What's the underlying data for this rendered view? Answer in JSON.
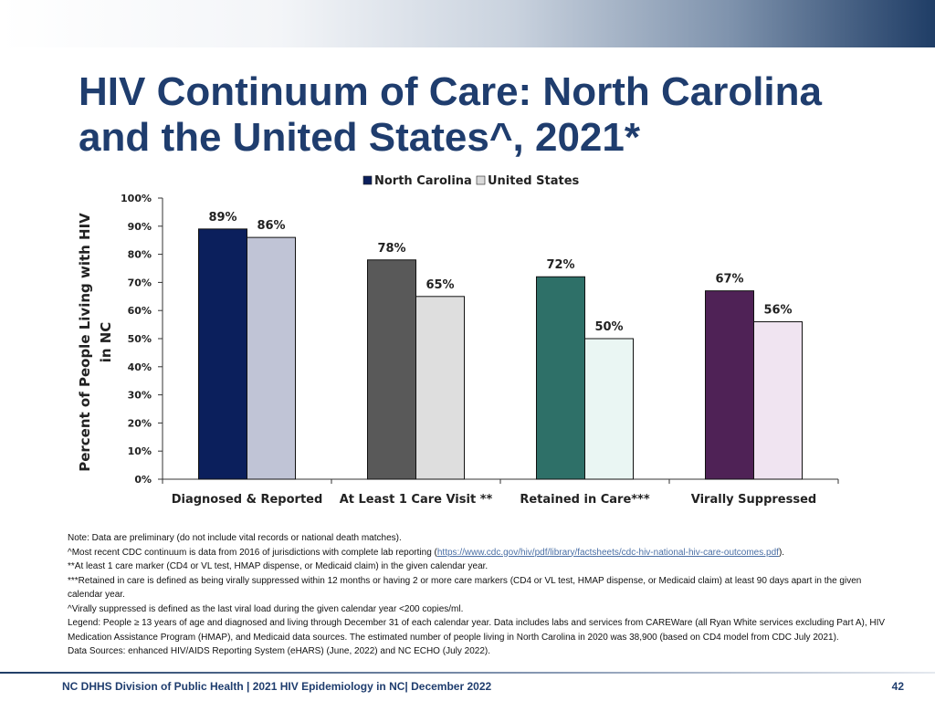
{
  "slide": {
    "title_line1": "HIV Continuum of Care: North Carolina",
    "title_line2": "and the United States^, 2021*",
    "footer": "NC DHHS Division of Public Health | 2021 HIV Epidemiology in NC| December 2022",
    "page_number": "42"
  },
  "notes": {
    "line1": "Note: Data are preliminary (do not include vital records or national death matches).",
    "line2_prefix": "^Most recent CDC continuum is data from 2016 of jurisdictions with complete lab reporting (",
    "line2_link": "https://www.cdc.gov/hiv/pdf/library/factsheets/cdc-hiv-national-hiv-care-outcomes.pdf",
    "line2_suffix": ").",
    "line3": "**At least 1 care marker (CD4 or VL test, HMAP dispense, or Medicaid claim) in the given calendar year.",
    "line4": "***Retained in care is defined as being virally suppressed within 12 months or having 2 or more care markers (CD4 or VL test, HMAP dispense, or Medicaid claim) at least 90 days apart in the given calendar year.",
    "line5": "^Virally suppressed is defined as the last viral load during the given calendar year <200 copies/ml.",
    "line6": "Legend: People ≥ 13 years of age and diagnosed and living through December 31 of each calendar year. Data includes labs and services from CAREWare (all Ryan White services excluding Part A), HIV Medication Assistance Program (HMAP), and Medicaid data sources. The estimated number of people living in North Carolina in 2020 was 38,900 (based on CD4 model from CDC July 2021).",
    "line7": "Data Sources: enhanced HIV/AIDS Reporting System (eHARS) (June, 2022) and NC ECHO (July 2022)."
  },
  "chart_data": {
    "type": "bar",
    "title": "",
    "xlabel": "",
    "ylabel": "Percent of People Living with HIV in NC",
    "ylim": [
      0,
      100
    ],
    "yticks": [
      "0%",
      "10%",
      "20%",
      "30%",
      "40%",
      "50%",
      "60%",
      "70%",
      "80%",
      "90%",
      "100%"
    ],
    "categories": [
      "Diagnosed & Reported",
      "At Least 1 Care Visit **",
      "Retained in Care***",
      "Virally Suppressed"
    ],
    "legend_position": "top",
    "series": [
      {
        "name": "North Carolina",
        "values": [
          89,
          78,
          72,
          67
        ],
        "labels": [
          "89%",
          "78%",
          "72%",
          "67%"
        ],
        "colors": [
          "#0b1f5c",
          "#595959",
          "#2e7068",
          "#4f2256"
        ],
        "legend_color": "#0b1f5c"
      },
      {
        "name": "United States",
        "values": [
          86,
          65,
          50,
          56
        ],
        "labels": [
          "86%",
          "65%",
          "50%",
          "56%"
        ],
        "colors": [
          "#c0c4d6",
          "#dedede",
          "#eaf6f3",
          "#f0e4f1"
        ],
        "legend_color": "#d9d9d9"
      }
    ]
  }
}
